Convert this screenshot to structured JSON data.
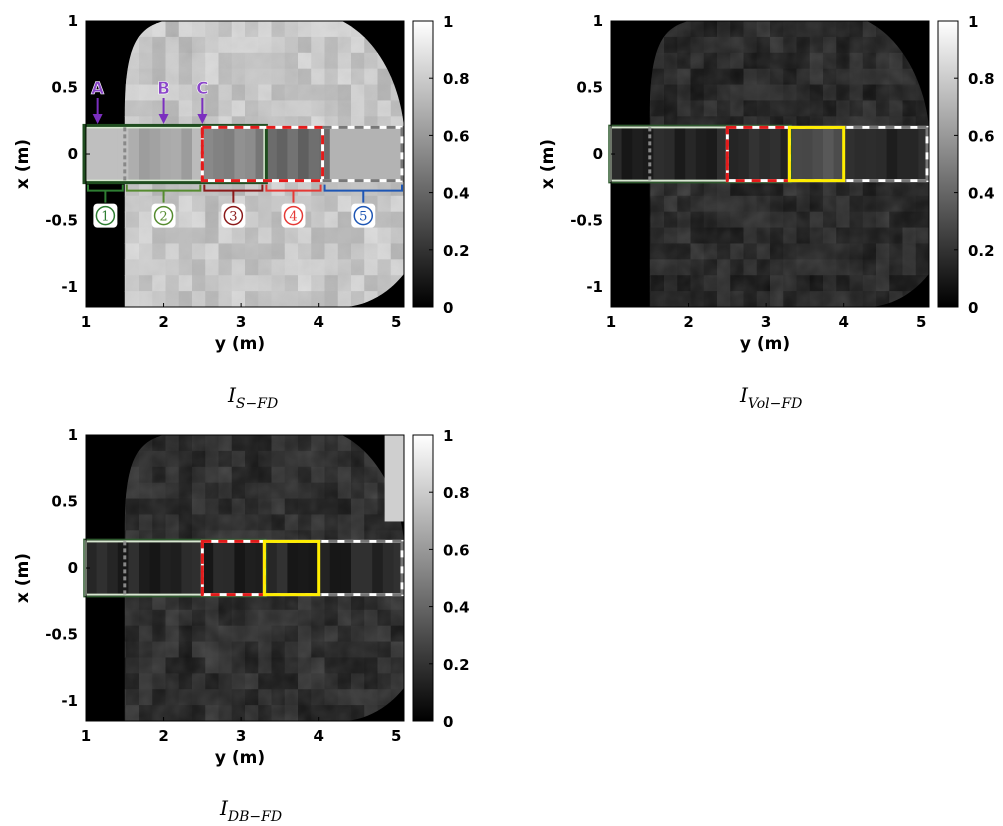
{
  "chart_data": [
    {
      "type": "heatmap",
      "caption_main": "I",
      "caption_sub": "S−FD",
      "xlabel": "y (m)",
      "ylabel": "x (m)",
      "xlim": [
        1,
        5.1
      ],
      "ylim": [
        -1.15,
        1
      ],
      "xticks": [
        "1",
        "2",
        "3",
        "4",
        "5"
      ],
      "yticks": [
        "1",
        "0.5",
        "0",
        "-0.5",
        "-1"
      ],
      "colorbar": {
        "range": [
          0,
          1
        ],
        "ticks": [
          "1",
          "0.8",
          "0.6",
          "0.4",
          "0.2",
          "0"
        ]
      },
      "background_level": 0.78,
      "annotations": {
        "arrows": [
          {
            "label": "A",
            "y": 1.15
          },
          {
            "label": "B",
            "y": 2.0
          },
          {
            "label": "C",
            "y": 2.5
          }
        ],
        "regions": [
          {
            "label": "1",
            "y_range": [
              1.0,
              1.5
            ],
            "color": "#2e7d32"
          },
          {
            "label": "2",
            "y_range": [
              1.5,
              2.5
            ],
            "color": "#558b2f"
          },
          {
            "label": "3",
            "y_range": [
              2.5,
              3.3
            ],
            "color": "#8b1a1a"
          },
          {
            "label": "4",
            "y_range": [
              3.3,
              4.05
            ],
            "color": "#e53935"
          },
          {
            "label": "5",
            "y_range": [
              4.05,
              5.1
            ],
            "color": "#1e56b4"
          }
        ]
      }
    },
    {
      "type": "heatmap",
      "caption_main": "I",
      "caption_sub": "Vol−FD",
      "xlabel": "y (m)",
      "ylabel": "x (m)",
      "xlim": [
        1,
        5.1
      ],
      "ylim": [
        -1.15,
        1
      ],
      "xticks": [
        "1",
        "2",
        "3",
        "4",
        "5"
      ],
      "yticks": [
        "1",
        "0.5",
        "0",
        "-0.5",
        "-1"
      ],
      "colorbar": {
        "range": [
          0,
          1
        ],
        "ticks": [
          "1",
          "0.8",
          "0.6",
          "0.4",
          "0.2",
          "0"
        ]
      },
      "background_level": 0.12,
      "highlight_box": {
        "y_range": [
          3.3,
          4.0
        ],
        "x_range": [
          -0.2,
          0.2
        ],
        "color": "#ffee00"
      }
    },
    {
      "type": "heatmap",
      "caption_main": "I",
      "caption_sub": "DB−FD",
      "xlabel": "y (m)",
      "ylabel": "x (m)",
      "xlim": [
        1,
        5.1
      ],
      "ylim": [
        -1.15,
        1
      ],
      "xticks": [
        "1",
        "2",
        "3",
        "4",
        "5"
      ],
      "yticks": [
        "1",
        "0.5",
        "0",
        "-0.5",
        "-1"
      ],
      "colorbar": {
        "range": [
          0,
          1
        ],
        "ticks": [
          "1",
          "0.8",
          "0.6",
          "0.4",
          "0.2",
          "0"
        ]
      },
      "background_level": 0.14,
      "highlight_box": {
        "y_range": [
          3.3,
          4.0
        ],
        "x_range": [
          -0.2,
          0.2
        ],
        "color": "#ffee00"
      }
    }
  ]
}
